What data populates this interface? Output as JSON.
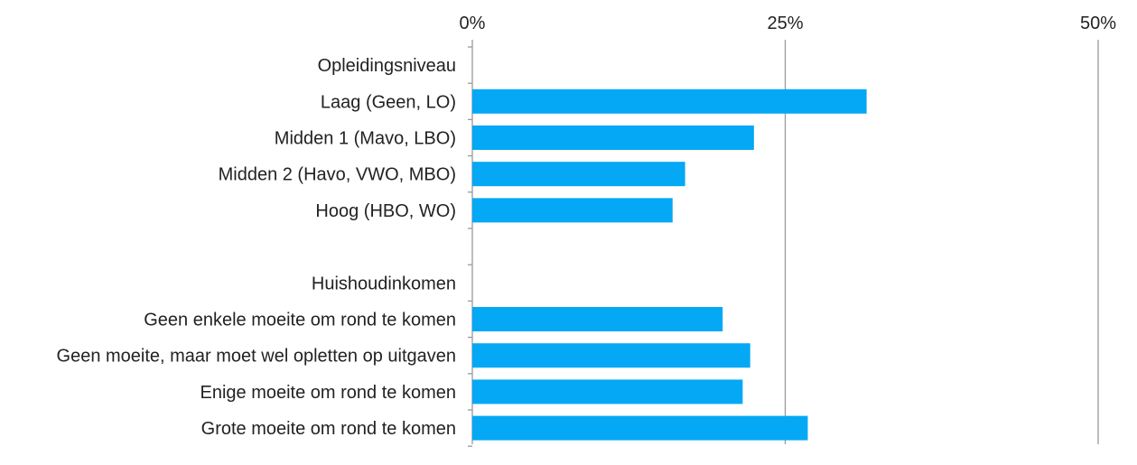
{
  "chart_data": {
    "type": "bar",
    "orientation": "horizontal",
    "title": "",
    "xlabel": "",
    "ylabel": "",
    "xlim": [
      0,
      50
    ],
    "x_ticks": [
      {
        "value": 0,
        "label": "0%"
      },
      {
        "value": 25,
        "label": "25%"
      },
      {
        "value": 50,
        "label": "50%"
      }
    ],
    "grid": "vertical",
    "bar_color": "#04A8F4",
    "axis_color": "#999999",
    "categories": [
      "Opleidingsniveau",
      "Laag (Geen, LO)",
      "Midden 1 (Mavo, LBO)",
      "Midden 2 (Havo, VWO, MBO)",
      "Hoog (HBO, WO)",
      "",
      "Huishoudinkomen",
      "Geen enkele moeite om rond te komen",
      "Geen moeite, maar moet wel opletten op uitgaven",
      "Enige moeite om rond te komen",
      "Grote moeite om rond te komen"
    ],
    "values": [
      null,
      31.5,
      22.5,
      17,
      16,
      null,
      null,
      20,
      22.2,
      21.6,
      26.8
    ]
  }
}
